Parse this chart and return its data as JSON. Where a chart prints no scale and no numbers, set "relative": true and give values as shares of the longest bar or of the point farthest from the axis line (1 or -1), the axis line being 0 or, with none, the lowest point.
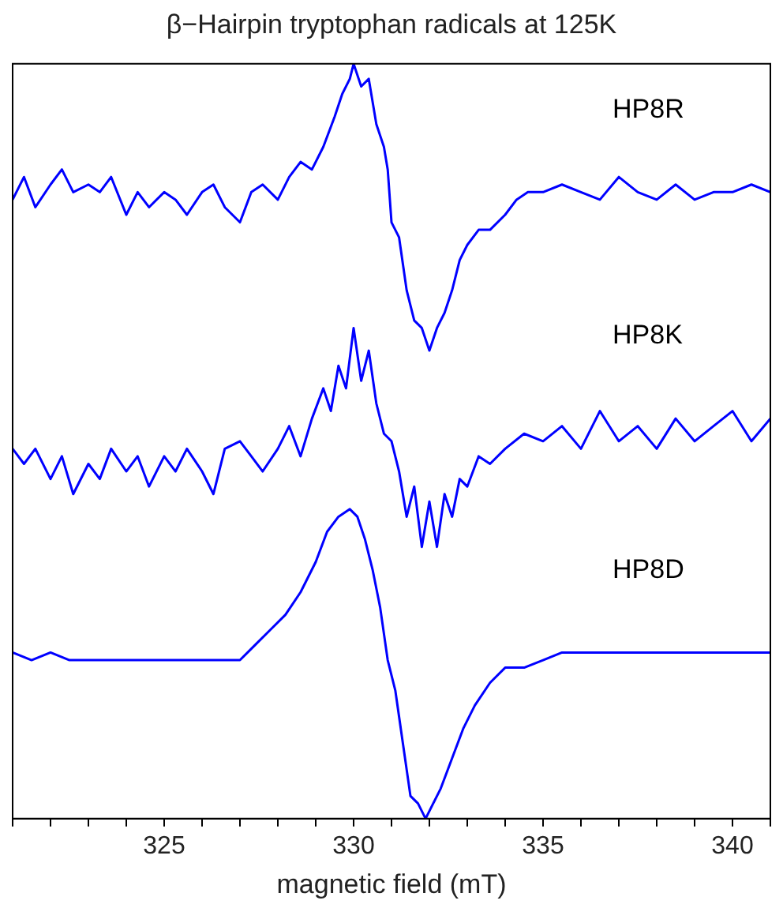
{
  "chart_data": {
    "type": "line",
    "title": "β−Hairpin tryptophan radicals at 125K",
    "xlabel": "magnetic field (mT)",
    "relative": true,
    "grid": false,
    "legend": false,
    "marker": "none",
    "line_style": "solid",
    "xlim": [
      321,
      341
    ],
    "xticks": [
      {
        "value": 321,
        "label": null
      },
      {
        "value": 322,
        "label": null
      },
      {
        "value": 323,
        "label": null
      },
      {
        "value": 324,
        "label": null
      },
      325,
      {
        "value": 326,
        "label": null
      },
      {
        "value": 327,
        "label": null
      },
      {
        "value": 328,
        "label": null
      },
      {
        "value": 329,
        "label": null
      },
      330,
      {
        "value": 331,
        "label": null
      },
      {
        "value": 332,
        "label": null
      },
      {
        "value": 333,
        "label": null
      },
      {
        "value": 334,
        "label": null
      },
      335,
      {
        "value": 336,
        "label": null
      },
      {
        "value": 337,
        "label": null
      },
      {
        "value": 338,
        "label": null
      },
      {
        "value": 339,
        "label": null
      },
      340,
      {
        "value": 341,
        "label": null
      }
    ],
    "series": [
      {
        "name": "HP8R",
        "color": "#0000ff",
        "x": [
          321.0,
          321.3,
          321.6,
          322.0,
          322.3,
          322.6,
          323.0,
          323.3,
          323.6,
          324.0,
          324.3,
          324.6,
          325.0,
          325.3,
          325.6,
          326.0,
          326.3,
          326.6,
          327.0,
          327.3,
          327.6,
          328.0,
          328.3,
          328.6,
          328.9,
          329.2,
          329.5,
          329.7,
          329.9,
          330.0,
          330.2,
          330.4,
          330.6,
          330.8,
          330.9,
          331.0,
          331.2,
          331.4,
          331.6,
          331.8,
          332.0,
          332.2,
          332.4,
          332.6,
          332.8,
          333.0,
          333.3,
          333.6,
          334.0,
          334.3,
          334.6,
          335.0,
          335.5,
          336.0,
          336.5,
          337.0,
          337.5,
          338.0,
          338.5,
          339.0,
          339.5,
          340.0,
          340.5,
          341.0
        ],
        "values": [
          0.82,
          0.85,
          0.81,
          0.84,
          0.86,
          0.83,
          0.84,
          0.83,
          0.85,
          0.8,
          0.83,
          0.81,
          0.83,
          0.82,
          0.8,
          0.83,
          0.84,
          0.81,
          0.79,
          0.83,
          0.84,
          0.82,
          0.85,
          0.87,
          0.86,
          0.89,
          0.93,
          0.96,
          0.98,
          1.0,
          0.97,
          0.98,
          0.92,
          0.89,
          0.86,
          0.79,
          0.77,
          0.7,
          0.66,
          0.65,
          0.62,
          0.65,
          0.67,
          0.7,
          0.74,
          0.76,
          0.78,
          0.78,
          0.8,
          0.82,
          0.83,
          0.83,
          0.84,
          0.83,
          0.82,
          0.85,
          0.83,
          0.82,
          0.84,
          0.82,
          0.83,
          0.83,
          0.84,
          0.83
        ]
      },
      {
        "name": "HP8K",
        "color": "#0000ff",
        "x": [
          321.0,
          321.3,
          321.6,
          322.0,
          322.3,
          322.6,
          323.0,
          323.3,
          323.6,
          324.0,
          324.3,
          324.6,
          325.0,
          325.3,
          325.6,
          326.0,
          326.3,
          326.6,
          327.0,
          327.3,
          327.6,
          328.0,
          328.3,
          328.6,
          328.9,
          329.2,
          329.4,
          329.6,
          329.8,
          330.0,
          330.2,
          330.4,
          330.6,
          330.8,
          331.0,
          331.2,
          331.4,
          331.6,
          331.8,
          332.0,
          332.2,
          332.4,
          332.6,
          332.8,
          333.0,
          333.3,
          333.6,
          334.0,
          334.5,
          335.0,
          335.5,
          336.0,
          336.5,
          337.0,
          337.5,
          338.0,
          338.5,
          339.0,
          339.5,
          340.0,
          340.5,
          341.0
        ],
        "values": [
          0.49,
          0.47,
          0.49,
          0.45,
          0.48,
          0.43,
          0.47,
          0.45,
          0.49,
          0.46,
          0.48,
          0.44,
          0.48,
          0.46,
          0.49,
          0.46,
          0.43,
          0.49,
          0.5,
          0.48,
          0.46,
          0.49,
          0.52,
          0.48,
          0.53,
          0.57,
          0.54,
          0.6,
          0.57,
          0.65,
          0.58,
          0.62,
          0.55,
          0.51,
          0.5,
          0.46,
          0.4,
          0.44,
          0.36,
          0.42,
          0.36,
          0.43,
          0.4,
          0.45,
          0.44,
          0.48,
          0.47,
          0.49,
          0.51,
          0.5,
          0.52,
          0.49,
          0.54,
          0.5,
          0.52,
          0.49,
          0.53,
          0.5,
          0.52,
          0.54,
          0.5,
          0.53
        ]
      },
      {
        "name": "HP8D",
        "color": "#0000ff",
        "x": [
          321.0,
          321.5,
          322.0,
          322.5,
          323.0,
          323.5,
          324.0,
          324.5,
          325.0,
          325.5,
          326.0,
          326.5,
          327.0,
          327.4,
          327.8,
          328.2,
          328.6,
          329.0,
          329.3,
          329.6,
          329.9,
          330.1,
          330.3,
          330.5,
          330.7,
          330.9,
          331.1,
          331.3,
          331.5,
          331.7,
          331.9,
          332.1,
          332.3,
          332.6,
          332.9,
          333.2,
          333.6,
          334.0,
          334.5,
          335.0,
          335.5,
          336.0,
          336.5,
          337.0,
          337.5,
          338.0,
          338.5,
          339.0,
          339.5,
          340.0,
          340.5,
          341.0
        ],
        "values": [
          0.22,
          0.21,
          0.22,
          0.21,
          0.21,
          0.21,
          0.21,
          0.21,
          0.21,
          0.21,
          0.21,
          0.21,
          0.21,
          0.23,
          0.25,
          0.27,
          0.3,
          0.34,
          0.38,
          0.4,
          0.41,
          0.4,
          0.37,
          0.33,
          0.28,
          0.21,
          0.17,
          0.1,
          0.03,
          0.02,
          0,
          0.02,
          0.04,
          0.08,
          0.12,
          0.15,
          0.18,
          0.2,
          0.2,
          0.21,
          0.22,
          0.22,
          0.22,
          0.22,
          0.22,
          0.22,
          0.22,
          0.22,
          0.22,
          0.22,
          0.22,
          0.22
        ]
      }
    ]
  }
}
